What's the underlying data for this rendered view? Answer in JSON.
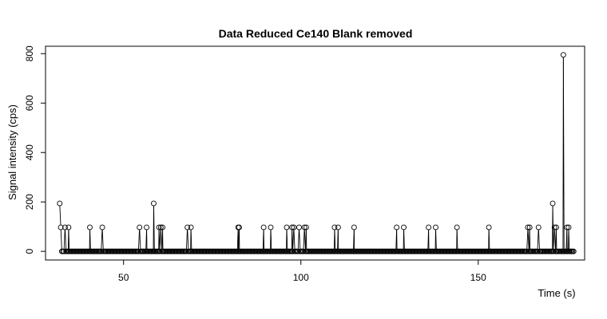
{
  "chart_data": {
    "type": "scatter",
    "title": "Data Reduced Ce140 Blank removed",
    "xlabel": "Time (s)",
    "ylabel": "Signal intensity (cps)",
    "xlim": [
      28,
      180
    ],
    "ylim": [
      -35,
      830
    ],
    "x_ticks": [
      50,
      100,
      150
    ],
    "y_ticks": [
      0,
      200,
      400,
      600,
      800
    ],
    "x_tick_labels": [
      "50",
      "100",
      "150"
    ],
    "y_tick_labels": [
      "0",
      "200",
      "400",
      "600",
      "800"
    ],
    "grid": false,
    "x_range": [
      32.0,
      177.0
    ],
    "x_step": 0.3,
    "baseline": 0,
    "series": [
      {
        "points": [
          [
            32.0,
            194
          ],
          [
            32.3,
            97
          ],
          [
            33.5,
            97
          ],
          [
            34.5,
            97
          ],
          [
            40.5,
            97
          ],
          [
            44.0,
            97
          ],
          [
            54.5,
            97
          ],
          [
            56.5,
            97
          ],
          [
            58.5,
            194
          ],
          [
            60.0,
            97
          ],
          [
            60.5,
            97
          ],
          [
            61.0,
            97
          ],
          [
            68.0,
            97
          ],
          [
            69.0,
            97
          ],
          [
            82.3,
            97
          ],
          [
            82.6,
            97
          ],
          [
            89.5,
            97
          ],
          [
            91.5,
            97
          ],
          [
            96.0,
            97
          ],
          [
            97.5,
            97
          ],
          [
            98.0,
            97
          ],
          [
            99.5,
            97
          ],
          [
            101.0,
            97
          ],
          [
            101.5,
            97
          ],
          [
            109.5,
            97
          ],
          [
            110.5,
            97
          ],
          [
            115.0,
            97
          ],
          [
            127.0,
            97
          ],
          [
            129.0,
            97
          ],
          [
            136.0,
            97
          ],
          [
            138.0,
            97
          ],
          [
            144.0,
            97
          ],
          [
            153.0,
            97
          ],
          [
            164.0,
            97
          ],
          [
            164.5,
            97
          ],
          [
            167.0,
            97
          ],
          [
            171.0,
            194
          ],
          [
            171.5,
            97
          ],
          [
            172.0,
            97
          ],
          [
            174.0,
            795
          ],
          [
            175.0,
            97
          ],
          [
            175.5,
            97
          ]
        ]
      }
    ]
  }
}
